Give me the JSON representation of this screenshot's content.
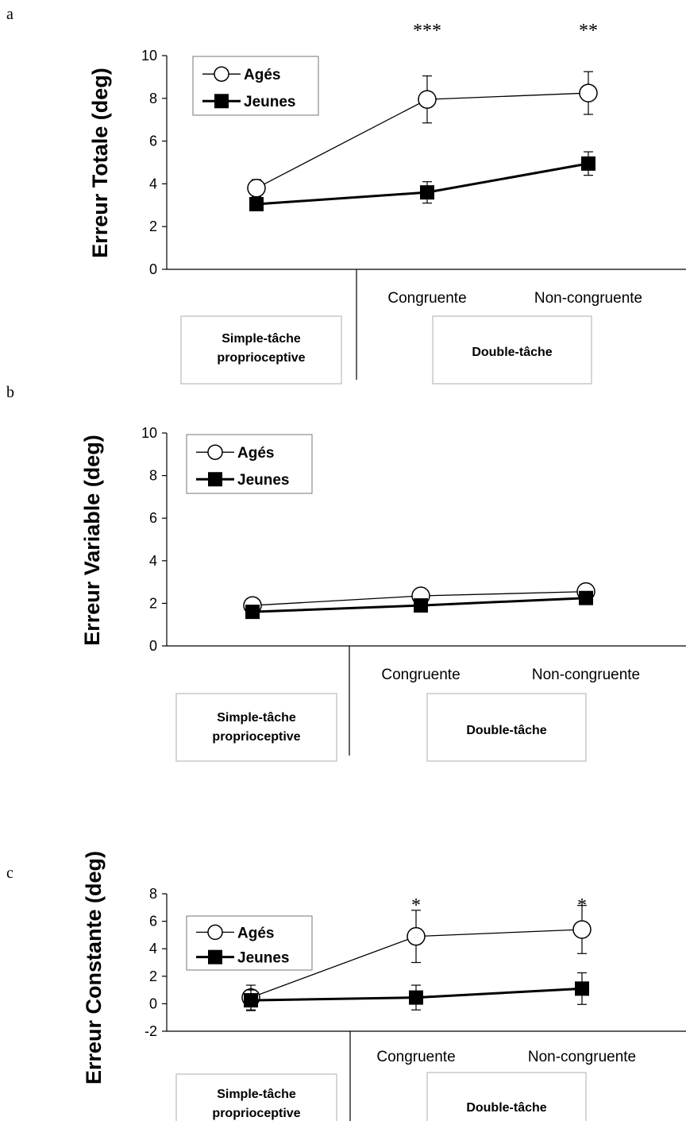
{
  "colors": {
    "line": "#000000",
    "box_border": "#c8c8c8",
    "background": "#ffffff"
  },
  "chart_data": [
    {
      "panel": "a",
      "type": "line",
      "ylabel": "Erreur Totale (deg)",
      "ylim": [
        0,
        10
      ],
      "yticks": [
        "0",
        "2",
        "4",
        "6",
        "8",
        "10"
      ],
      "categories": [
        "",
        "Congruente",
        "Non-congruente"
      ],
      "group_labels": [
        "Simple-tâche proprioceptive",
        "Double-tâche"
      ],
      "legend": {
        "placement": "top-left"
      },
      "significance": [
        "",
        "***",
        "**"
      ],
      "grid": false,
      "series": [
        {
          "name": "Agés",
          "marker": "open-circle",
          "values": [
            3.8,
            7.95,
            8.25
          ],
          "error": [
            0.4,
            1.1,
            1.0
          ]
        },
        {
          "name": "Jeunes",
          "marker": "filled-square",
          "values": [
            3.05,
            3.6,
            4.95
          ],
          "error": [
            0.2,
            0.5,
            0.55
          ]
        }
      ]
    },
    {
      "panel": "b",
      "type": "line",
      "ylabel": "Erreur Variable (deg)",
      "ylim": [
        0,
        10
      ],
      "yticks": [
        "0",
        "2",
        "4",
        "6",
        "8",
        "10"
      ],
      "categories": [
        "",
        "Congruente",
        "Non-congruente"
      ],
      "group_labels": [
        "Simple-tâche proprioceptive",
        "Double-tâche"
      ],
      "legend": {
        "placement": "top-left"
      },
      "significance": [
        "",
        "",
        ""
      ],
      "grid": false,
      "series": [
        {
          "name": "Agés",
          "marker": "open-circle",
          "values": [
            1.9,
            2.35,
            2.55
          ],
          "error": [
            0,
            0,
            0
          ]
        },
        {
          "name": "Jeunes",
          "marker": "filled-square",
          "values": [
            1.6,
            1.9,
            2.25
          ],
          "error": [
            0,
            0,
            0
          ]
        }
      ]
    },
    {
      "panel": "c",
      "type": "line",
      "ylabel": "Erreur Constante (deg)",
      "ylim": [
        -2,
        8
      ],
      "yticks": [
        "-2",
        "0",
        "2",
        "4",
        "6",
        "8"
      ],
      "categories": [
        "",
        "Congruente",
        "Non-congruente"
      ],
      "group_labels": [
        "Simple-tâche proprioceptive",
        "Double-tâche"
      ],
      "legend": {
        "placement": "top-left"
      },
      "significance": [
        "",
        "*",
        "*"
      ],
      "grid": false,
      "series": [
        {
          "name": "Agés",
          "marker": "open-circle",
          "values": [
            0.45,
            4.9,
            5.4
          ],
          "error": [
            0.9,
            1.9,
            1.75
          ]
        },
        {
          "name": "Jeunes",
          "marker": "filled-square",
          "values": [
            0.25,
            0.45,
            1.1
          ],
          "error": [
            0.75,
            0.9,
            1.15
          ]
        }
      ]
    }
  ]
}
